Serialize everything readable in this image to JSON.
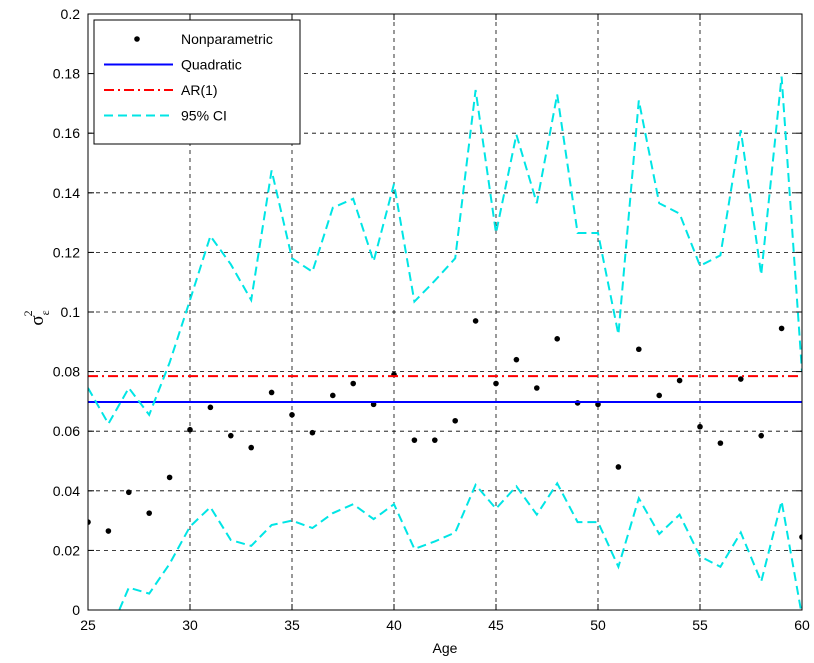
{
  "chart_data": {
    "type": "line",
    "xlabel": "Age",
    "ylabel": "σε2",
    "ylabel_parts": {
      "base": "σ",
      "sub": "ε",
      "sup": "2"
    },
    "xlim": [
      25,
      60
    ],
    "ylim": [
      0,
      0.2
    ],
    "xticks": [
      "25",
      "30",
      "35",
      "40",
      "45",
      "50",
      "55",
      "60"
    ],
    "yticks": [
      "0",
      "0.02",
      "0.04",
      "0.06",
      "0.08",
      "0.1",
      "0.12",
      "0.14",
      "0.16",
      "0.18",
      "0.2"
    ],
    "grid": true,
    "legend_position": "top-left",
    "x": [
      25,
      26,
      27,
      28,
      29,
      30,
      31,
      32,
      33,
      34,
      35,
      36,
      37,
      38,
      39,
      40,
      41,
      42,
      43,
      44,
      45,
      46,
      47,
      48,
      49,
      50,
      51,
      52,
      53,
      54,
      55,
      56,
      57,
      58,
      59,
      60
    ],
    "series": [
      {
        "name": "Nonparametric",
        "style": "markers",
        "color": "#000000",
        "values": [
          0.0295,
          0.0265,
          0.0395,
          0.0325,
          0.0445,
          0.0605,
          0.068,
          0.0585,
          0.0545,
          0.073,
          0.0655,
          0.0595,
          0.072,
          0.076,
          0.069,
          0.079,
          0.057,
          0.057,
          0.0635,
          0.097,
          0.076,
          0.084,
          0.0745,
          0.091,
          0.0695,
          0.069,
          0.048,
          0.0875,
          0.072,
          0.077,
          0.0615,
          0.056,
          0.0775,
          0.0585,
          0.0945,
          0.0245
        ]
      },
      {
        "name": "Quadratic",
        "style": "solid",
        "color": "#0000ff",
        "values": [
          0.0698,
          0.0698,
          0.0698,
          0.0698,
          0.0698,
          0.0698,
          0.0698,
          0.0698,
          0.0698,
          0.0698,
          0.0698,
          0.0698,
          0.0698,
          0.0698,
          0.0698,
          0.0698,
          0.0698,
          0.0698,
          0.0698,
          0.0698,
          0.0698,
          0.0698,
          0.0698,
          0.0698,
          0.0698,
          0.0698,
          0.0698,
          0.0698,
          0.0698,
          0.0698,
          0.0698,
          0.0698,
          0.0698,
          0.0698,
          0.0698,
          0.0698
        ]
      },
      {
        "name": "AR(1)",
        "style": "dashdot",
        "color": "#ff0000",
        "values": [
          0.0785,
          0.0785,
          0.0785,
          0.0785,
          0.0785,
          0.0785,
          0.0785,
          0.0785,
          0.0785,
          0.0785,
          0.0785,
          0.0785,
          0.0785,
          0.0785,
          0.0785,
          0.0785,
          0.0785,
          0.0785,
          0.0785,
          0.0785,
          0.0785,
          0.0785,
          0.0785,
          0.0785,
          0.0785,
          0.0785,
          0.0785,
          0.0785,
          0.0785,
          0.0785,
          0.0785,
          0.0785,
          0.0785,
          0.0785,
          0.0785,
          0.0785
        ]
      },
      {
        "name": "95% CI",
        "style": "dashed",
        "color": "#00e5e5",
        "values": [
          0.0745,
          0.0625,
          0.0745,
          0.0655,
          0.083,
          0.104,
          0.1255,
          0.116,
          0.104,
          0.1475,
          0.118,
          0.1135,
          0.135,
          0.138,
          0.117,
          0.143,
          0.1035,
          0.1105,
          0.118,
          0.1745,
          0.1265,
          0.1595,
          0.1365,
          0.173,
          0.1265,
          0.1265,
          0.0925,
          0.171,
          0.1365,
          0.133,
          0.1155,
          0.119,
          0.161,
          0.1125,
          0.179,
          0.08
        ]
      },
      {
        "name": "95% CI lower",
        "style": "dashed",
        "color": "#00e5e5",
        "values": [
          null,
          -0.0085,
          0.0075,
          0.0055,
          0.0155,
          0.028,
          0.0345,
          0.0235,
          0.0215,
          0.0285,
          0.03,
          0.0275,
          0.0325,
          0.0355,
          0.0305,
          0.0355,
          0.0205,
          0.023,
          0.026,
          0.042,
          0.034,
          0.0415,
          0.032,
          0.0425,
          0.0295,
          0.0295,
          0.0145,
          0.0375,
          0.0255,
          0.032,
          0.018,
          0.0145,
          0.026,
          0.0095,
          0.0365,
          -0.002
        ]
      }
    ]
  }
}
